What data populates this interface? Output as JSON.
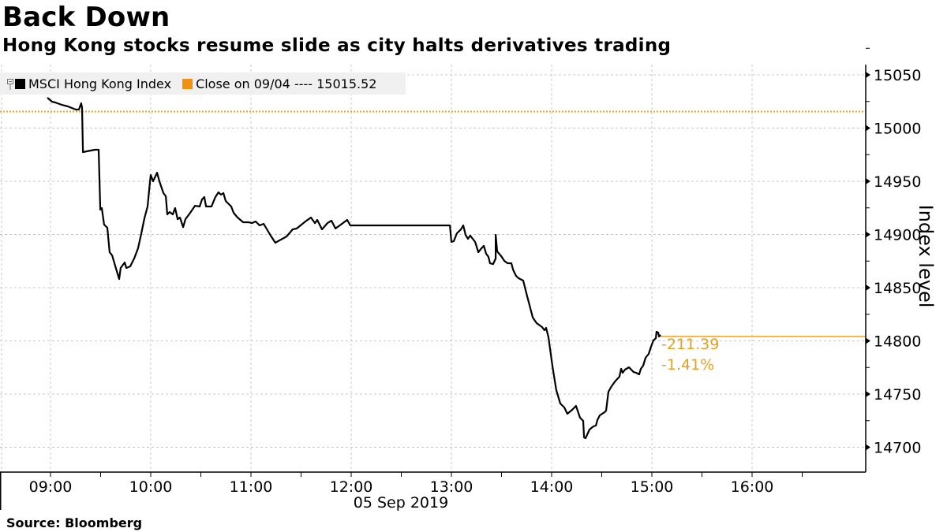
{
  "header": {
    "title": "Back Down",
    "subtitle": "Hong Kong stocks resume slide as city halts derivatives trading"
  },
  "legend": {
    "items": [
      {
        "label": "MSCI Hong Kong Index",
        "color": "#000000"
      },
      {
        "label": "Close on 09/04 ---- 15015.52",
        "color": "#f0920f"
      }
    ]
  },
  "footer": {
    "source": "Source:  Bloomberg"
  },
  "annotations": {
    "change": "-211.39",
    "change_pct": "-1.41%"
  },
  "colors": {
    "line": "#000000",
    "close": "#f0a020",
    "accent_text": "#e8a020",
    "grid": "#c8c8c8",
    "legend_bg": "#f0f0f0"
  },
  "chart_data": {
    "type": "line",
    "title": "Back Down",
    "subtitle": "Hong Kong stocks resume slide as city halts derivatives trading",
    "xlabel": "05 Sep 2019",
    "ylabel": "Index level",
    "x_ticks": [
      "09:00",
      "10:00",
      "11:00",
      "12:00",
      "13:00",
      "14:00",
      "15:00",
      "16:00"
    ],
    "y_ticks": [
      15050,
      15000,
      14950,
      14900,
      14850,
      14800,
      14750,
      14700
    ],
    "ylim": [
      14675,
      15060
    ],
    "grid": true,
    "legend_position": "top-left",
    "reference_line": {
      "label": "Close on 09/04",
      "value": 15015.52
    },
    "last_value": 14804.13,
    "change": -211.39,
    "change_pct": -1.41,
    "series": [
      {
        "name": "MSCI Hong Kong Index",
        "x_unit": "minutes since 09:00",
        "points": [
          [
            -1.9,
            15028.5
          ],
          [
            0.9,
            15024.8
          ],
          [
            2.8,
            15024.1
          ],
          [
            6.6,
            15021.9
          ],
          [
            10.4,
            15020.4
          ],
          [
            15.1,
            15017.4
          ],
          [
            17.0,
            15017.4
          ],
          [
            18.4,
            15023.3
          ],
          [
            18.9,
            15018.9
          ],
          [
            19.4,
            14977.4
          ],
          [
            24.1,
            14978.9
          ],
          [
            26.5,
            14979.6
          ],
          [
            28.8,
            14979.6
          ],
          [
            29.8,
            14923.3
          ],
          [
            30.7,
            14924.8
          ],
          [
            32.1,
            14909.3
          ],
          [
            34.0,
            14906.3
          ],
          [
            35.4,
            14883.3
          ],
          [
            36.9,
            14880.4
          ],
          [
            38.7,
            14870.7
          ],
          [
            41.1,
            14858.1
          ],
          [
            42.0,
            14868.5
          ],
          [
            44.4,
            14873.7
          ],
          [
            45.4,
            14868.5
          ],
          [
            47.7,
            14870.0
          ],
          [
            50.1,
            14877.4
          ],
          [
            52.4,
            14887.0
          ],
          [
            54.3,
            14900.4
          ],
          [
            56.2,
            14915.2
          ],
          [
            58.1,
            14926.3
          ],
          [
            59.5,
            14948.5
          ],
          [
            60.0,
            14955.9
          ],
          [
            61.4,
            14950.0
          ],
          [
            63.8,
            14958.1
          ],
          [
            65.2,
            14950.0
          ],
          [
            67.6,
            14938.9
          ],
          [
            69.0,
            14935.9
          ],
          [
            69.9,
            14918.9
          ],
          [
            71.3,
            14921.1
          ],
          [
            73.2,
            14918.9
          ],
          [
            74.6,
            14924.8
          ],
          [
            76.1,
            14914.4
          ],
          [
            77.5,
            14915.9
          ],
          [
            79.4,
            14907.0
          ],
          [
            80.8,
            14914.4
          ],
          [
            83.6,
            14920.4
          ],
          [
            86.5,
            14927.0
          ],
          [
            89.3,
            14926.3
          ],
          [
            90.7,
            14933.0
          ],
          [
            92.1,
            14935.2
          ],
          [
            93.1,
            14926.3
          ],
          [
            96.4,
            14926.3
          ],
          [
            98.7,
            14935.2
          ],
          [
            100.6,
            14939.6
          ],
          [
            102.0,
            14937.4
          ],
          [
            103.5,
            14938.9
          ],
          [
            104.9,
            14931.5
          ],
          [
            108.2,
            14926.3
          ],
          [
            109.6,
            14920.4
          ],
          [
            112.0,
            14915.9
          ],
          [
            115.3,
            14911.5
          ],
          [
            118.6,
            14911.5
          ],
          [
            120.5,
            14910.7
          ],
          [
            122.8,
            14912.2
          ],
          [
            125.2,
            14908.5
          ],
          [
            127.6,
            14910.0
          ],
          [
            131.8,
            14898.9
          ],
          [
            134.6,
            14892.2
          ],
          [
            137.0,
            14894.4
          ],
          [
            141.3,
            14898.1
          ],
          [
            145.0,
            14904.8
          ],
          [
            147.4,
            14905.6
          ],
          [
            152.6,
            14912.2
          ],
          [
            155.9,
            14915.9
          ],
          [
            158.3,
            14910.7
          ],
          [
            159.7,
            14913.7
          ],
          [
            162.5,
            14904.8
          ],
          [
            165.8,
            14910.7
          ],
          [
            168.2,
            14913.0
          ],
          [
            170.6,
            14905.6
          ],
          [
            173.9,
            14909.3
          ],
          [
            177.6,
            14913.7
          ],
          [
            179.5,
            14908.5
          ],
          [
            239.1,
            14908.5
          ],
          [
            240.0,
            14893.0
          ],
          [
            241.4,
            14893.7
          ],
          [
            243.3,
            14901.1
          ],
          [
            245.7,
            14904.8
          ],
          [
            247.1,
            14908.5
          ],
          [
            248.5,
            14899.6
          ],
          [
            249.9,
            14895.9
          ],
          [
            251.3,
            14898.9
          ],
          [
            254.2,
            14893.0
          ],
          [
            256.1,
            14883.3
          ],
          [
            258.0,
            14887.0
          ],
          [
            259.4,
            14889.3
          ],
          [
            260.8,
            14881.9
          ],
          [
            262.2,
            14878.9
          ],
          [
            263.1,
            14873.0
          ],
          [
            265.0,
            14872.2
          ],
          [
            266.5,
            14877.4
          ],
          [
            266.5,
            14899.6
          ],
          [
            267.4,
            14884.1
          ],
          [
            269.8,
            14879.6
          ],
          [
            271.7,
            14875.2
          ],
          [
            273.6,
            14873.0
          ],
          [
            275.9,
            14873.0
          ],
          [
            276.9,
            14867.0
          ],
          [
            278.7,
            14861.1
          ],
          [
            280.2,
            14858.9
          ],
          [
            283.0,
            14856.7
          ],
          [
            284.9,
            14844.8
          ],
          [
            288.7,
            14821.9
          ],
          [
            291.0,
            14816.7
          ],
          [
            294.3,
            14813.0
          ],
          [
            295.7,
            14810.0
          ],
          [
            296.7,
            14812.2
          ],
          [
            298.1,
            14803.3
          ],
          [
            300.5,
            14775.9
          ],
          [
            302.8,
            14753.7
          ],
          [
            305.2,
            14741.1
          ],
          [
            307.6,
            14737.4
          ],
          [
            309.4,
            14731.5
          ],
          [
            312.3,
            14735.2
          ],
          [
            314.6,
            14738.9
          ],
          [
            317.0,
            14727.8
          ],
          [
            318.9,
            14724.8
          ],
          [
            319.4,
            14709.3
          ],
          [
            320.3,
            14708.5
          ],
          [
            322.7,
            14716.7
          ],
          [
            325.0,
            14719.6
          ],
          [
            326.5,
            14720.4
          ],
          [
            327.4,
            14725.6
          ],
          [
            328.8,
            14730.0
          ],
          [
            331.7,
            14733.0
          ],
          [
            332.6,
            14734.4
          ],
          [
            334.0,
            14752.2
          ],
          [
            335.9,
            14757.4
          ],
          [
            338.3,
            14762.6
          ],
          [
            340.6,
            14766.3
          ],
          [
            341.6,
            14773.7
          ],
          [
            342.5,
            14770.0
          ],
          [
            343.9,
            14773.0
          ],
          [
            346.3,
            14775.2
          ],
          [
            349.1,
            14770.7
          ],
          [
            350.6,
            14770.0
          ],
          [
            352.4,
            14768.5
          ],
          [
            353.4,
            14773.7
          ],
          [
            354.8,
            14776.7
          ],
          [
            356.2,
            14784.1
          ],
          [
            358.1,
            14787.8
          ],
          [
            359.5,
            14794.4
          ],
          [
            360.9,
            14800.4
          ],
          [
            362.4,
            14802.6
          ],
          [
            362.8,
            14808.5
          ],
          [
            363.8,
            14807.8
          ],
          [
            364.3,
            14804.1
          ],
          [
            365.2,
            14805.6
          ]
        ]
      }
    ]
  }
}
